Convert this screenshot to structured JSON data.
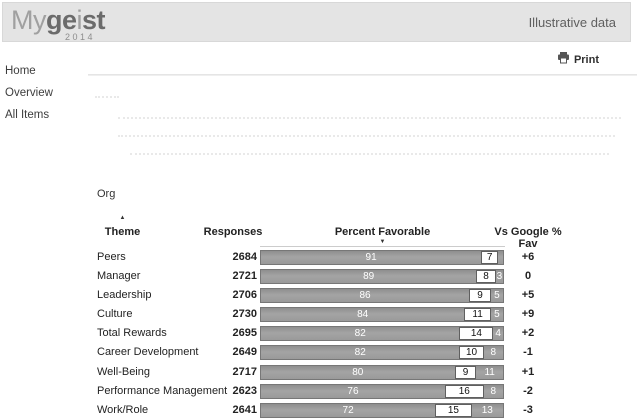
{
  "header": {
    "logo": {
      "part1": "My",
      "part2": "ge",
      "part3": "i",
      "part4": "st",
      "year": "2014"
    },
    "right_label": "Illustrative data"
  },
  "toolbar": {
    "print_label": "Print"
  },
  "sidebar": {
    "items": [
      {
        "label": "Home"
      },
      {
        "label": "Overview"
      },
      {
        "label": "All Items"
      }
    ]
  },
  "report": {
    "group_label": "Org",
    "sort_up_icon": "▲",
    "sort_down_icon": "▼"
  },
  "table": {
    "columns": [
      "Theme",
      "Responses",
      "Percent Favorable",
      "Vs Google % Fav"
    ],
    "rows": [
      {
        "theme": "Peers",
        "responses": "2684",
        "favorable": 91,
        "neutral": 7,
        "unfavorable": 2,
        "vs_google": "+6"
      },
      {
        "theme": "Manager",
        "responses": "2721",
        "favorable": 89,
        "neutral": 8,
        "unfavorable": 3,
        "vs_google": "0"
      },
      {
        "theme": "Leadership",
        "responses": "2706",
        "favorable": 86,
        "neutral": 9,
        "unfavorable": 5,
        "vs_google": "+5"
      },
      {
        "theme": "Culture",
        "responses": "2730",
        "favorable": 84,
        "neutral": 11,
        "unfavorable": 5,
        "vs_google": "+9"
      },
      {
        "theme": "Total Rewards",
        "responses": "2695",
        "favorable": 82,
        "neutral": 14,
        "unfavorable": 4,
        "vs_google": "+2"
      },
      {
        "theme": "Career Development",
        "responses": "2649",
        "favorable": 82,
        "neutral": 10,
        "unfavorable": 8,
        "vs_google": "-1"
      },
      {
        "theme": "Well-Being",
        "responses": "2717",
        "favorable": 80,
        "neutral": 9,
        "unfavorable": 11,
        "vs_google": "+1"
      },
      {
        "theme": "Performance Management",
        "responses": "2623",
        "favorable": 76,
        "neutral": 16,
        "unfavorable": 8,
        "vs_google": "-2"
      },
      {
        "theme": "Work/Role",
        "responses": "2641",
        "favorable": 72,
        "neutral": 15,
        "unfavorable": 13,
        "vs_google": "-3"
      }
    ]
  },
  "colors": {
    "header_bg": "#e4e4e4",
    "bar_fill": "#9b9b9b",
    "bar_border": "#777777",
    "neutral_bg": "#ffffff",
    "text": "#222222"
  }
}
